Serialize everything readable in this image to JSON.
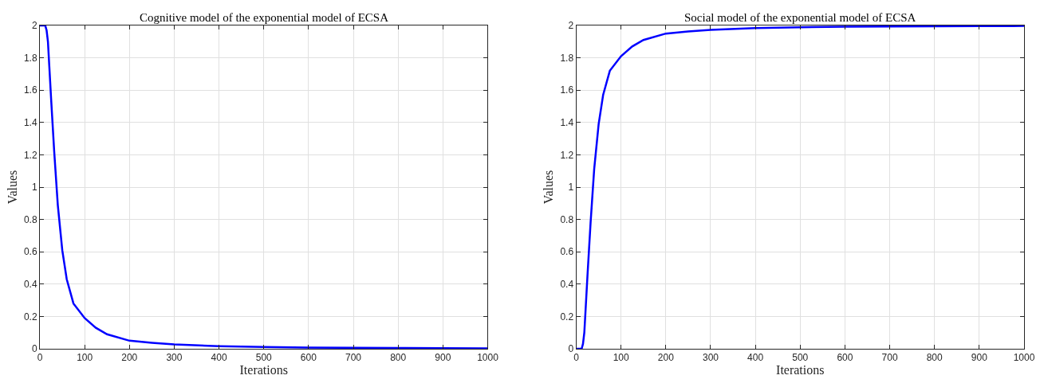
{
  "chart_data": [
    {
      "type": "line",
      "title": "Cognitive model of the exponential model of ECSA",
      "xlabel": "Iterations",
      "ylabel": "Values",
      "xlim": [
        0,
        1000
      ],
      "ylim": [
        0,
        2
      ],
      "xticks": [
        0,
        100,
        200,
        300,
        400,
        500,
        600,
        700,
        800,
        900,
        1000
      ],
      "yticks": [
        0,
        0.2,
        0.4,
        0.6,
        0.8,
        1,
        1.2,
        1.4,
        1.6,
        1.8,
        2
      ],
      "grid": true,
      "marker": "none",
      "line_style": "solid",
      "series": [
        {
          "color": "#0000ff",
          "x": [
            0,
            12,
            15,
            18,
            21,
            25,
            32,
            40,
            50,
            60,
            75,
            100,
            125,
            150,
            200,
            250,
            300,
            400,
            500,
            600,
            700,
            800,
            900,
            1000
          ],
          "values": [
            2,
            2,
            1.97,
            1.9,
            1.75,
            1.55,
            1.22,
            0.89,
            0.61,
            0.43,
            0.28,
            0.19,
            0.13,
            0.09,
            0.05,
            0.037,
            0.027,
            0.016,
            0.011,
            0.008,
            0.006,
            0.005,
            0.004,
            0.003
          ]
        }
      ]
    },
    {
      "type": "line",
      "title": "Social model of the exponential model of ECSA",
      "xlabel": "Iterations",
      "ylabel": "Values",
      "xlim": [
        0,
        1000
      ],
      "ylim": [
        0,
        2
      ],
      "xticks": [
        0,
        100,
        200,
        300,
        400,
        500,
        600,
        700,
        800,
        900,
        1000
      ],
      "yticks": [
        0,
        0.2,
        0.4,
        0.6,
        0.8,
        1,
        1.2,
        1.4,
        1.6,
        1.8,
        2
      ],
      "grid": true,
      "marker": "none",
      "line_style": "solid",
      "series": [
        {
          "color": "#0000ff",
          "x": [
            0,
            12,
            15,
            18,
            21,
            25,
            32,
            40,
            50,
            60,
            75,
            100,
            125,
            150,
            200,
            250,
            300,
            400,
            500,
            600,
            700,
            800,
            900,
            1000
          ],
          "values": [
            0,
            0,
            0.03,
            0.1,
            0.25,
            0.45,
            0.78,
            1.11,
            1.39,
            1.57,
            1.72,
            1.81,
            1.87,
            1.91,
            1.95,
            1.963,
            1.973,
            1.984,
            1.989,
            1.992,
            1.994,
            1.995,
            1.996,
            1.997
          ]
        }
      ]
    }
  ]
}
